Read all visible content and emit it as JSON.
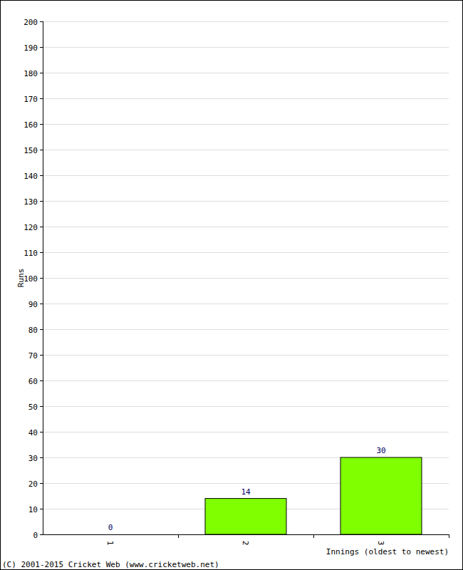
{
  "chart_data": {
    "type": "bar",
    "x_label": "Innings (oldest to newest)",
    "y_label": "Runs",
    "annotations": [
      "(C) 2001-2015 Cricket Web (www.cricketweb.net)"
    ],
    "categories": [
      "1",
      "2",
      "3"
    ],
    "values": [
      0,
      14,
      30
    ],
    "color": "#80ff00",
    "ylim": [
      0,
      200
    ],
    "yticks": [
      0,
      10,
      20,
      30,
      40,
      50,
      60,
      70,
      80,
      90,
      100,
      110,
      120,
      130,
      140,
      150,
      160,
      170,
      180,
      190,
      200
    ],
    "grid": true,
    "data_labels": true
  }
}
